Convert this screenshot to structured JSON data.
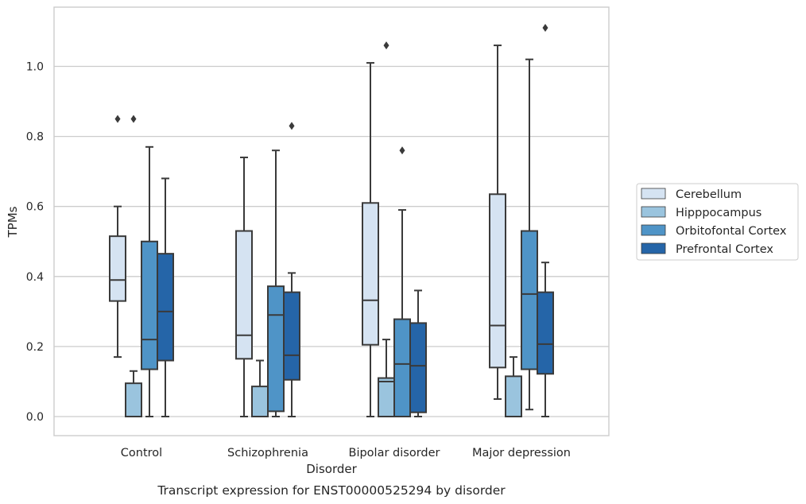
{
  "chart_data": {
    "type": "box",
    "title": "",
    "caption": "Transcript expression for ENST00000525294 by disorder",
    "xlabel": "Disorder",
    "ylabel": "TPMs",
    "ylim": [
      -0.055,
      1.175
    ],
    "yticks": [
      0.0,
      0.2,
      0.4,
      0.6,
      0.8,
      1.0
    ],
    "ytick_labels": [
      "0.0",
      "0.2",
      "0.4",
      "0.6",
      "0.8",
      "1.0"
    ],
    "grid": "horizontal",
    "legend_position": "right",
    "categories": [
      "Control",
      "Schizophrenia",
      "Bipolar disorder",
      "Major depression"
    ],
    "series": [
      {
        "name": "Cerebellum",
        "color": "#d5e3f2",
        "boxes": [
          {
            "whisker_low": 0.17,
            "q1": 0.33,
            "median": 0.39,
            "q3": 0.515,
            "whisker_high": 0.6,
            "outliers": [
              0.85
            ]
          },
          {
            "whisker_low": 0.0,
            "q1": 0.165,
            "median": 0.232,
            "q3": 0.53,
            "whisker_high": 0.74,
            "outliers": []
          },
          {
            "whisker_low": 0.0,
            "q1": 0.205,
            "median": 0.332,
            "q3": 0.61,
            "whisker_high": 1.01,
            "outliers": []
          },
          {
            "whisker_low": 0.05,
            "q1": 0.14,
            "median": 0.26,
            "q3": 0.635,
            "whisker_high": 1.06,
            "outliers": []
          }
        ]
      },
      {
        "name": "Hipppocampus",
        "color": "#9ac4de",
        "boxes": [
          {
            "whisker_low": 0.0,
            "q1": 0.0,
            "median": 0.0,
            "q3": 0.095,
            "whisker_high": 0.13,
            "outliers": [
              0.85
            ]
          },
          {
            "whisker_low": 0.0,
            "q1": 0.0,
            "median": 0.0,
            "q3": 0.086,
            "whisker_high": 0.16,
            "outliers": []
          },
          {
            "whisker_low": 0.0,
            "q1": 0.0,
            "median": 0.1,
            "q3": 0.11,
            "whisker_high": 0.22,
            "outliers": [
              1.06
            ]
          },
          {
            "whisker_low": 0.0,
            "q1": 0.0,
            "median": 0.0,
            "q3": 0.115,
            "whisker_high": 0.17,
            "outliers": []
          }
        ]
      },
      {
        "name": "Orbitofontal Cortex",
        "color": "#4f94c7",
        "boxes": [
          {
            "whisker_low": 0.0,
            "q1": 0.135,
            "median": 0.22,
            "q3": 0.5,
            "whisker_high": 0.77,
            "outliers": []
          },
          {
            "whisker_low": 0.0,
            "q1": 0.015,
            "median": 0.29,
            "q3": 0.372,
            "whisker_high": 0.76,
            "outliers": []
          },
          {
            "whisker_low": 0.0,
            "q1": 0.0,
            "median": 0.15,
            "q3": 0.278,
            "whisker_high": 0.59,
            "outliers": [
              0.76
            ]
          },
          {
            "whisker_low": 0.02,
            "q1": 0.135,
            "median": 0.35,
            "q3": 0.53,
            "whisker_high": 1.02,
            "outliers": []
          }
        ]
      },
      {
        "name": "Prefrontal Cortex",
        "color": "#2565a8",
        "boxes": [
          {
            "whisker_low": 0.0,
            "q1": 0.16,
            "median": 0.3,
            "q3": 0.465,
            "whisker_high": 0.68,
            "outliers": []
          },
          {
            "whisker_low": 0.0,
            "q1": 0.105,
            "median": 0.175,
            "q3": 0.355,
            "whisker_high": 0.41,
            "outliers": [
              0.83
            ]
          },
          {
            "whisker_low": 0.0,
            "q1": 0.012,
            "median": 0.145,
            "q3": 0.267,
            "whisker_high": 0.36,
            "outliers": []
          },
          {
            "whisker_low": 0.0,
            "q1": 0.122,
            "median": 0.207,
            "q3": 0.355,
            "whisker_high": 0.44,
            "outliers": [
              1.11
            ]
          }
        ]
      }
    ]
  }
}
